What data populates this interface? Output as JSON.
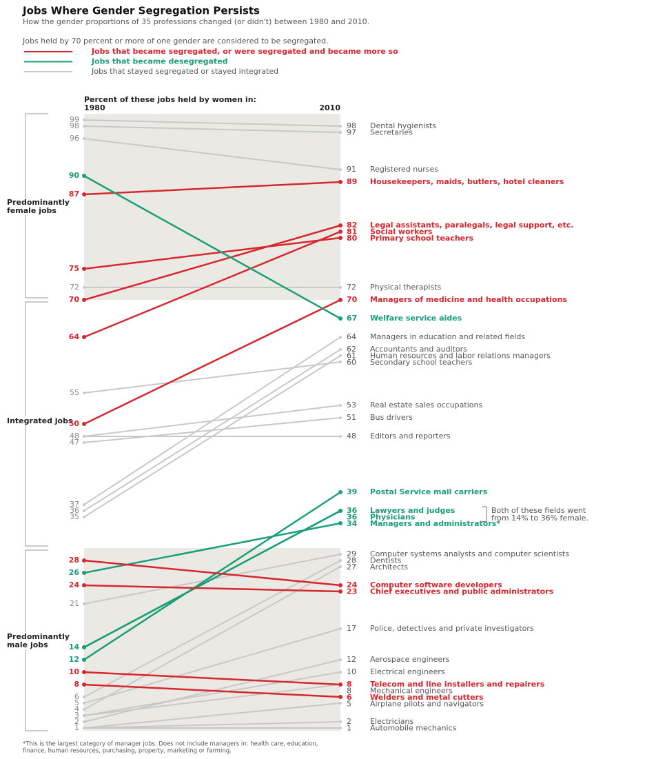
{
  "chart_data": {
    "type": "slope",
    "title": "Jobs Where Gender Segregation Persists",
    "subtitle": "How the gender proportions of 35 professions changed (or didn't) between 1980 and 2010.",
    "note": "Jobs held by 70 percent or more of one gender are considered to be segregated.",
    "legend": [
      {
        "name": "Jobs that became segregated, or were segregated and became more so",
        "color": "#d7262e"
      },
      {
        "name": "Jobs that became desegregated",
        "color": "#1a9e77"
      },
      {
        "name": "Jobs that stayed segregated or stayed integrated",
        "color": "#c8c8c8"
      }
    ],
    "axis_title": "Percent of these jobs held by women in:",
    "x": [
      "1980",
      "2010"
    ],
    "ylim": [
      0,
      100
    ],
    "threshold": 70,
    "groups": [
      {
        "label": [
          "Predominantly",
          "female jobs"
        ]
      },
      {
        "label": [
          "Integrated jobs"
        ]
      },
      {
        "label": [
          "Predominantly",
          "male jobs"
        ]
      }
    ],
    "jobs": [
      {
        "name": "Dental hygienists",
        "v1980": 99,
        "v2010": 98,
        "color": "#c8c8c8"
      },
      {
        "name": "Secretaries",
        "v1980": 98,
        "v2010": 97,
        "color": "#c8c8c8"
      },
      {
        "name": "Registered nurses",
        "v1980": 96,
        "v2010": 91,
        "color": "#c8c8c8"
      },
      {
        "name": "Housekeepers, maids, butlers, hotel cleaners",
        "v1980": 87,
        "v2010": 89,
        "color": "#d7262e"
      },
      {
        "name": "Legal assistants, paralegals, legal support, etc.",
        "v1980": 70,
        "v2010": 82,
        "color": "#d7262e"
      },
      {
        "name": "Social workers",
        "v1980": 64,
        "v2010": 81,
        "color": "#d7262e"
      },
      {
        "name": "Primary school teachers",
        "v1980": 75,
        "v2010": 80,
        "color": "#d7262e"
      },
      {
        "name": "Physical therapists",
        "v1980": 72,
        "v2010": 72,
        "color": "#c8c8c8"
      },
      {
        "name": "Managers of medicine and health occupations",
        "v1980": 50,
        "v2010": 70,
        "color": "#d7262e"
      },
      {
        "name": "Welfare service aides",
        "v1980": 90,
        "v2010": 67,
        "color": "#1a9e77"
      },
      {
        "name": "Managers in education and related fields",
        "v1980": 37,
        "v2010": 64,
        "color": "#c8c8c8"
      },
      {
        "name": "Accountants and auditors",
        "v1980": 36,
        "v2010": 62,
        "color": "#c8c8c8"
      },
      {
        "name": "Human resources and labor relations managers",
        "v1980": 35,
        "v2010": 61,
        "color": "#c8c8c8"
      },
      {
        "name": "Secondary school teachers",
        "v1980": 55,
        "v2010": 60,
        "color": "#c8c8c8"
      },
      {
        "name": "Real estate sales occupations",
        "v1980": 48,
        "v2010": 53,
        "color": "#c8c8c8"
      },
      {
        "name": "Bus drivers",
        "v1980": 47,
        "v2010": 51,
        "color": "#c8c8c8"
      },
      {
        "name": "Editors and reporters",
        "v1980": 48,
        "v2010": 48,
        "color": "#c8c8c8"
      },
      {
        "name": "Postal Service mail carriers",
        "v1980": 12,
        "v2010": 39,
        "color": "#1a9e77"
      },
      {
        "name": "Lawyers and judges",
        "v1980": 14,
        "v2010": 36,
        "color": "#1a9e77"
      },
      {
        "name": "Physicians",
        "v1980": 14,
        "v2010": 36,
        "color": "#1a9e77"
      },
      {
        "name": "Managers and administrators*",
        "v1980": 26,
        "v2010": 34,
        "color": "#1a9e77"
      },
      {
        "name": "Computer systems analysts and computer scientists",
        "v1980": 21,
        "v2010": 29,
        "color": "#c8c8c8"
      },
      {
        "name": "Dentists",
        "v1980": 6,
        "v2010": 28,
        "color": "#c8c8c8"
      },
      {
        "name": "Architects",
        "v1980": 4,
        "v2010": 27,
        "color": "#c8c8c8"
      },
      {
        "name": "Computer software developers",
        "v1980": 28,
        "v2010": 24,
        "color": "#d7262e"
      },
      {
        "name": "Chief executives and public administrators",
        "v1980": 24,
        "v2010": 23,
        "color": "#d7262e"
      },
      {
        "name": "Police, detectives and private investigators",
        "v1980": 5,
        "v2010": 17,
        "color": "#c8c8c8"
      },
      {
        "name": "Aerospace engineers",
        "v1980": 2,
        "v2010": 12,
        "color": "#c8c8c8"
      },
      {
        "name": "Electrical engineers",
        "v1980": 3,
        "v2010": 10,
        "color": "#c8c8c8"
      },
      {
        "name": "Telecom and line installers and repairers",
        "v1980": 10,
        "v2010": 8,
        "color": "#d7262e"
      },
      {
        "name": "Mechanical engineers",
        "v1980": 3,
        "v2010": 8,
        "color": "#c8c8c8"
      },
      {
        "name": "Welders and metal cutters",
        "v1980": 8,
        "v2010": 6,
        "color": "#d7262e"
      },
      {
        "name": "Airplane pilots and navigators",
        "v1980": 1,
        "v2010": 5,
        "color": "#c8c8c8"
      },
      {
        "name": "Electricians",
        "v1980": 1,
        "v2010": 2,
        "color": "#c8c8c8"
      },
      {
        "name": "Automobile mechanics",
        "v1980": 1,
        "v2010": 1,
        "color": "#c8c8c8"
      }
    ],
    "annotation": [
      "Both of these fields went",
      "from 14% to 36% female."
    ],
    "footnote": [
      "*This is the largest category of manager jobs. Does not include managers in: health care, education,",
      "finance, human resources, purchasing, property, marketing or farming."
    ]
  }
}
